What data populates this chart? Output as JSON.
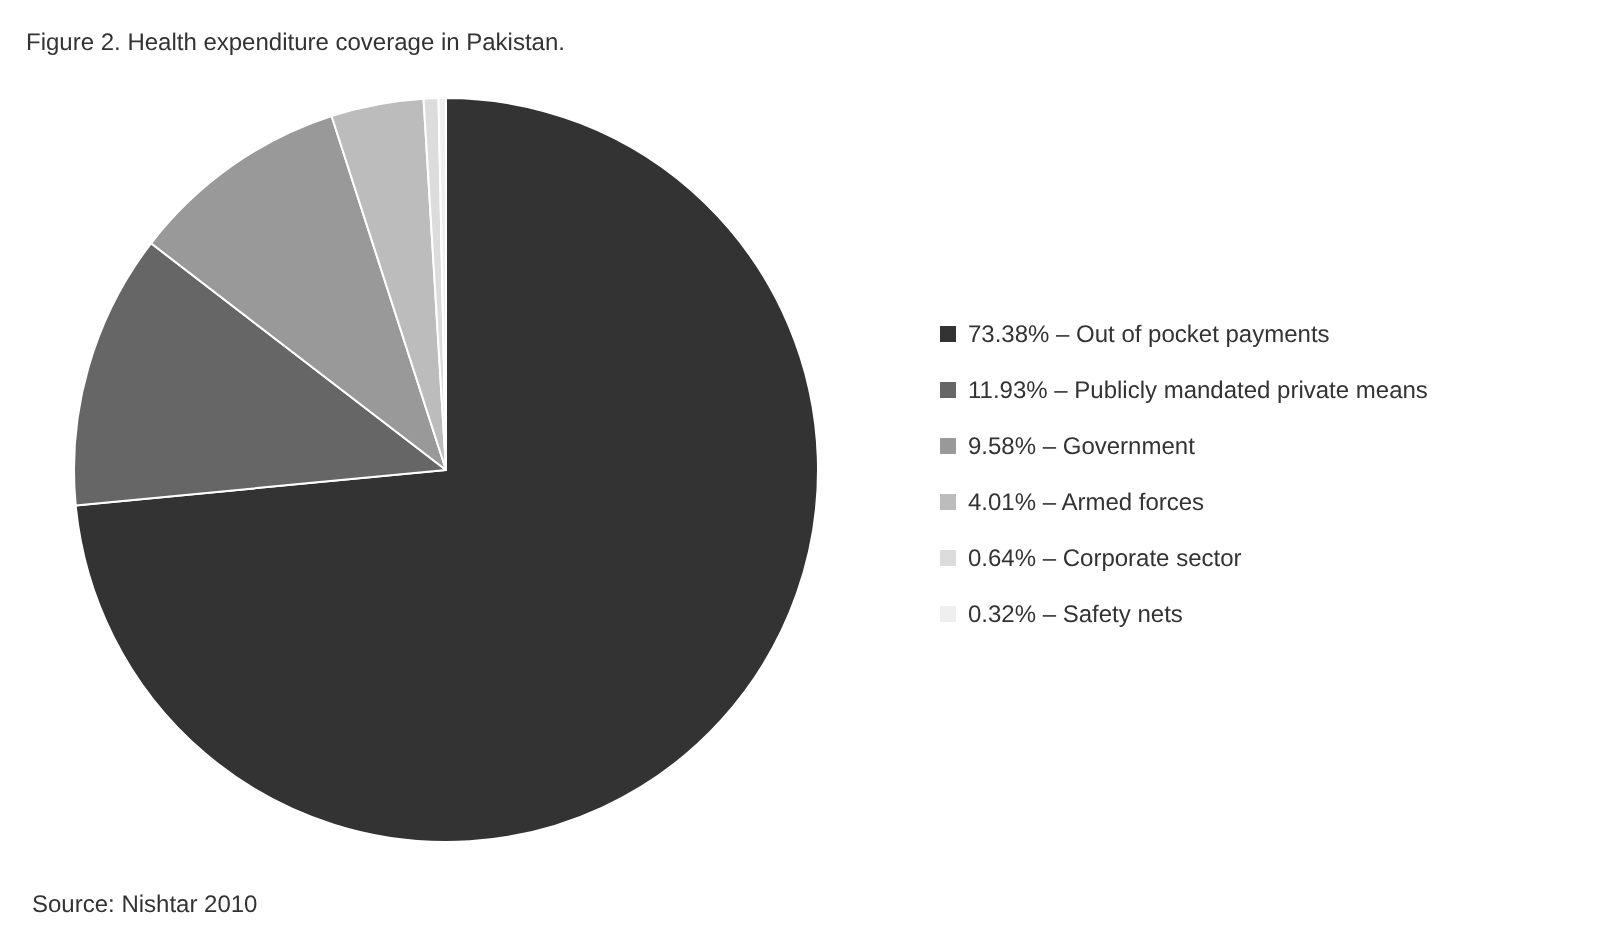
{
  "chart_data": {
    "type": "pie",
    "title": "Figure 2. Health expenditure coverage in Pakistan.",
    "categories": [
      "73.38% – Out of pocket payments",
      "11.93% – Publicly mandated private means",
      "9.58% – Government",
      "4.01% – Armed forces",
      "0.64% – Corporate sector",
      "0.32% – Safety nets"
    ],
    "values": [
      73.38,
      11.93,
      9.58,
      4.01,
      0.64,
      0.32
    ],
    "colors": [
      "#333333",
      "#666666",
      "#999999",
      "#bcbcbc",
      "#dcdcdc",
      "#efefef"
    ],
    "legend": "right",
    "annotations": [
      "Source: Nishtar 2010"
    ]
  }
}
